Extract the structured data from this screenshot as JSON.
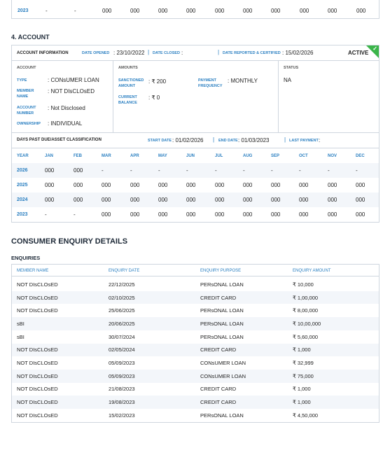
{
  "top_table": {
    "rows": [
      {
        "year": "2023",
        "values": [
          "-",
          "-",
          "000",
          "000",
          "000",
          "000",
          "000",
          "000",
          "000",
          "000",
          "000",
          "000"
        ]
      }
    ]
  },
  "account": {
    "section_title": "4. ACCOUNT",
    "info_label": "ACCOUNT INFORMATION",
    "date_opened_label": "DATE OPENED",
    "date_opened": "23/10/2022",
    "date_closed_label": "DATE CLOSED",
    "date_closed": "",
    "date_reported_label": "DATE REPORTED & CERTIFIED",
    "date_reported": "15/02/2026",
    "status_badge": "ACTIVE",
    "account_col": {
      "title": "ACCOUNT",
      "type_label": "TYPE",
      "type": "CONsUMER LOAN",
      "member_label": "MEMBER NAME",
      "member": "NOT DIsCLOsED",
      "acc_no_label": "ACCOUNT NUMBER",
      "acc_no": "Not Disclosed",
      "ownership_label": "OWNERSHIP",
      "ownership": "INDIVIDUAL"
    },
    "amounts_col": {
      "title": "AMOUNTS",
      "sanctioned_label": "SANCTIONED AMOUNT",
      "sanctioned": "₹ 200",
      "current_label": "CURRENT BALANCE",
      "current": "₹ 0",
      "payment_label": "PAYMENT FREQUENCY",
      "payment": "MONTHLY"
    },
    "status_col": {
      "title": "STATUS",
      "value": "NA"
    },
    "dpd": {
      "label": "DAYS PAST DUE/ASSET CLASSIFICATION",
      "start_label": "START DATE",
      "start": "01/02/2026",
      "end_label": "END DATE",
      "end": "01/03/2023",
      "last_payment_label": "LAST PAYMENT",
      "last_payment": ""
    },
    "months": [
      "YEAR",
      "JAN",
      "FEB",
      "MAR",
      "APR",
      "MAY",
      "JUN",
      "JUL",
      "AUG",
      "SEP",
      "OCT",
      "NOV",
      "DEC"
    ],
    "rows": [
      {
        "year": "2026",
        "values": [
          "000",
          "000",
          "-",
          "-",
          "-",
          "-",
          "-",
          "-",
          "-",
          "-",
          "-",
          "-"
        ]
      },
      {
        "year": "2025",
        "values": [
          "000",
          "000",
          "000",
          "000",
          "000",
          "000",
          "000",
          "000",
          "000",
          "000",
          "000",
          "000"
        ]
      },
      {
        "year": "2024",
        "values": [
          "000",
          "000",
          "000",
          "000",
          "000",
          "000",
          "000",
          "000",
          "000",
          "000",
          "000",
          "000"
        ]
      },
      {
        "year": "2023",
        "values": [
          "-",
          "-",
          "000",
          "000",
          "000",
          "000",
          "000",
          "000",
          "000",
          "000",
          "000",
          "000"
        ]
      }
    ]
  },
  "enquiry": {
    "title": "CONSUMER ENQUIRY DETAILS",
    "subtitle": "ENQUIRIES",
    "headers": [
      "MEMBER NAME",
      "ENQUIRY DATE",
      "ENQUIRY PURPOSE",
      "ENQUIRY AMOUNT"
    ],
    "rows": [
      [
        "NOT DIsCLOsED",
        "22/12/2025",
        "PERsONAL LOAN",
        "₹ 10,000"
      ],
      [
        "NOT DIsCLOsED",
        "02/10/2025",
        "CREDIT CARD",
        "₹ 1,00,000"
      ],
      [
        "NOT DIsCLOsED",
        "25/06/2025",
        "PERsONAL LOAN",
        "₹ 8,00,000"
      ],
      [
        "sBI",
        "20/06/2025",
        "PERsONAL LOAN",
        "₹ 10,00,000"
      ],
      [
        "sBI",
        "30/07/2024",
        "PERsONAL LOAN",
        "₹ 5,60,000"
      ],
      [
        "NOT DIsCLOsED",
        "02/05/2024",
        "CREDIT CARD",
        "₹ 1,000"
      ],
      [
        "NOT DIsCLOsED",
        "05/09/2023",
        "CONsUMER LOAN",
        "₹ 32,999"
      ],
      [
        "NOT DIsCLOsED",
        "05/09/2023",
        "CONsUMER LOAN",
        "₹ 75,000"
      ],
      [
        "NOT DIsCLOsED",
        "21/08/2023",
        "CREDIT CARD",
        "₹ 1,000"
      ],
      [
        "NOT DIsCLOsED",
        "19/08/2023",
        "CREDIT CARD",
        "₹ 1,000"
      ],
      [
        "NOT DIsCLOsED",
        "15/02/2023",
        "PERsONAL LOAN",
        "₹ 4,50,000"
      ]
    ]
  }
}
